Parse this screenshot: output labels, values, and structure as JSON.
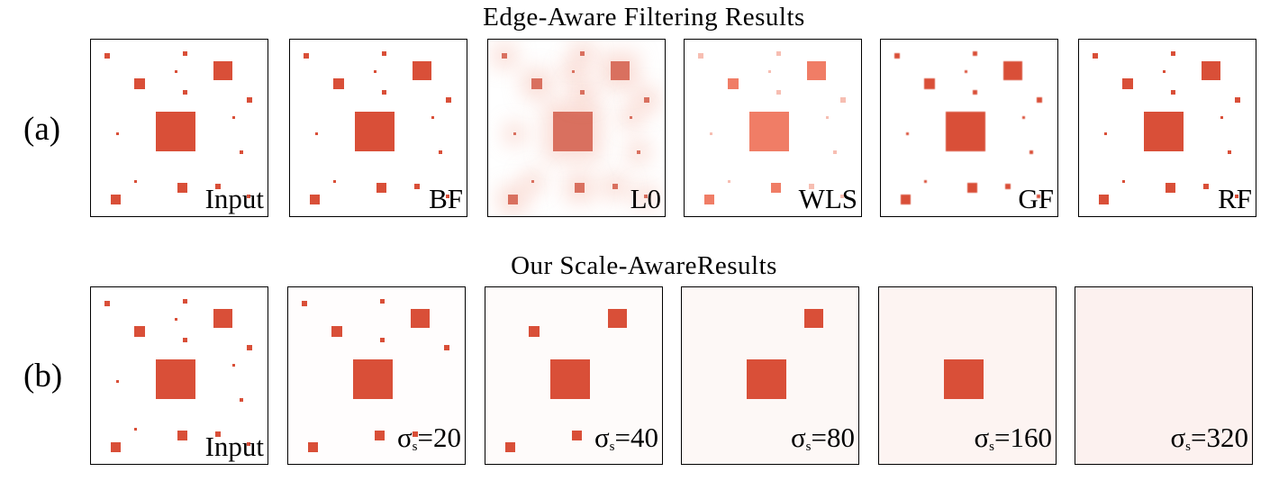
{
  "figure": {
    "row_a": {
      "label": "(a)",
      "title": "Edge-Aware Filtering Results",
      "panels": [
        {
          "id": "input",
          "caption": "Input",
          "style": "sharp"
        },
        {
          "id": "bf",
          "caption": "BF",
          "style": "sharp"
        },
        {
          "id": "l0",
          "caption": "L0",
          "style": "l0"
        },
        {
          "id": "wls",
          "caption": "WLS",
          "style": "wls"
        },
        {
          "id": "gf",
          "caption": "GF",
          "style": "gf"
        },
        {
          "id": "rf",
          "caption": "RF",
          "style": "sharp"
        }
      ]
    },
    "row_b": {
      "label": "(b)",
      "title": "Our Scale-AwareResults",
      "panels": [
        {
          "id": "input",
          "caption": "Input",
          "sigma": null,
          "keep": "all"
        },
        {
          "id": "s20",
          "caption_sym": "σ",
          "caption_sub": "s",
          "caption_val": "=20",
          "keep": "gt4"
        },
        {
          "id": "s40",
          "caption_sym": "σ",
          "caption_sub": "s",
          "caption_val": "=40",
          "keep": "gt8"
        },
        {
          "id": "s80",
          "caption_sym": "σ",
          "caption_sub": "s",
          "caption_val": "=80",
          "keep": "gt15"
        },
        {
          "id": "s160",
          "caption_sym": "σ",
          "caption_sub": "s",
          "caption_val": "=160",
          "keep": "gt30"
        },
        {
          "id": "s320",
          "caption_sym": "σ",
          "caption_sub": "s",
          "caption_val": "=320",
          "keep": "none"
        }
      ]
    },
    "colors": {
      "square": "#d94f38",
      "border": "#000000",
      "background": "#ffffff"
    }
  }
}
